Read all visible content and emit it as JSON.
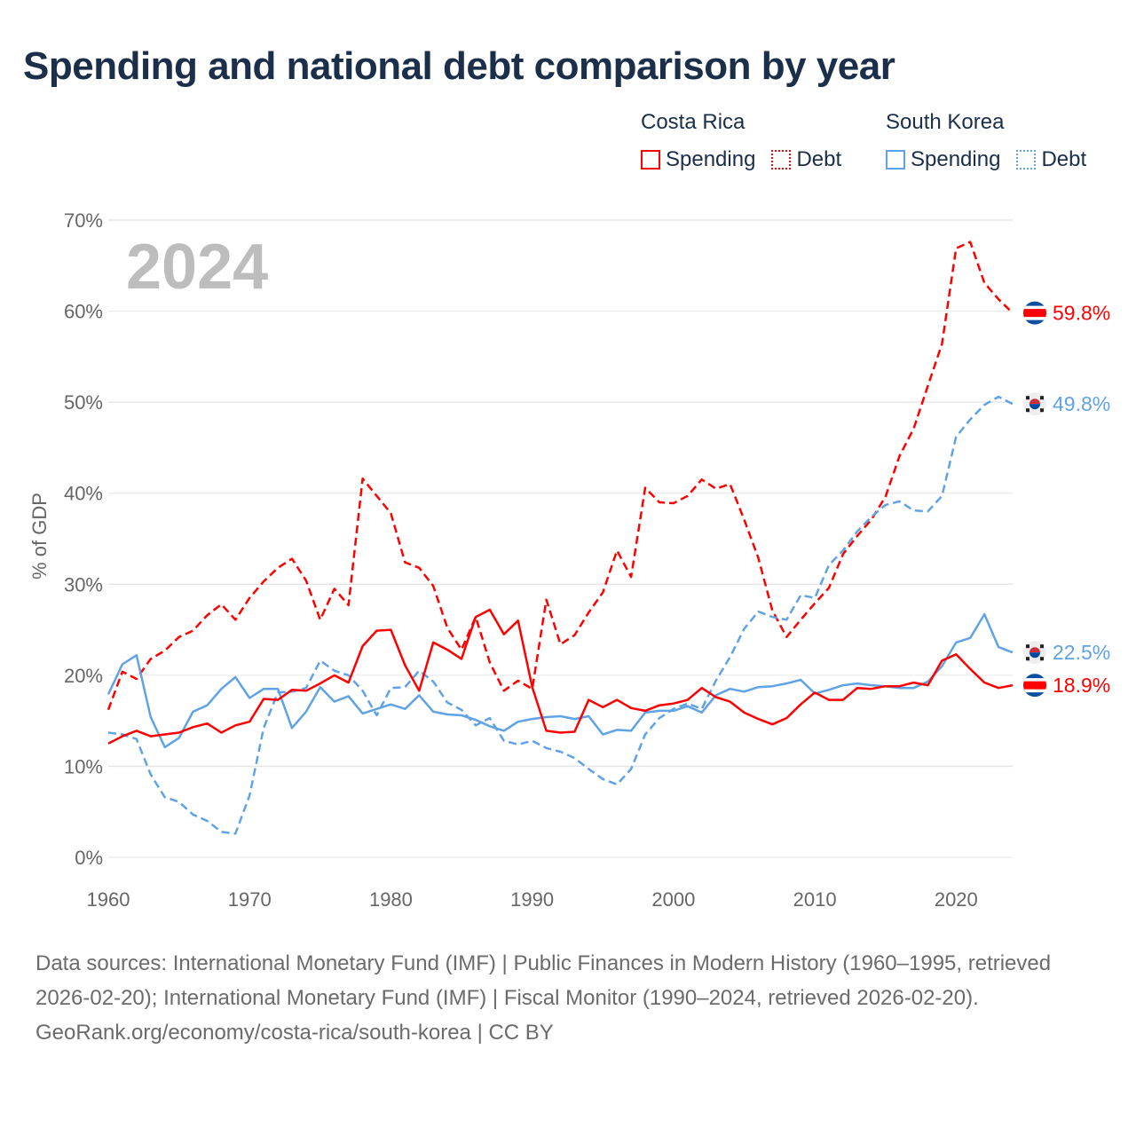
{
  "title": "Spending and national debt comparison by year",
  "legend": {
    "groups": [
      {
        "country": "Costa Rica",
        "items": [
          "Spending",
          "Debt"
        ],
        "color": "#ff0000"
      },
      {
        "country": "South Korea",
        "items": [
          "Spending",
          "Debt"
        ],
        "color": "#5fa3e6"
      }
    ]
  },
  "year_overlay": "2024",
  "footer": {
    "sources": "Data sources: International Monetary Fund (IMF) | Public Finances in Modern History (1960–1995, retrieved 2026-02-20); International Monetary Fund (IMF) | Fiscal Monitor (1990–2024, retrieved 2026-02-20).",
    "credit": "GeoRank.org/economy/costa-rica/south-korea | CC BY"
  },
  "chart_data": {
    "type": "line",
    "title": "Spending and national debt comparison by year",
    "xlabel": "",
    "ylabel": "% of GDP",
    "xlim": [
      1960,
      2024
    ],
    "ylim": [
      0,
      70
    ],
    "x_ticks": [
      "1960",
      "1970",
      "1980",
      "1990",
      "2000",
      "2010",
      "2020"
    ],
    "y_ticks": [
      "0%",
      "10%",
      "20%",
      "30%",
      "40%",
      "50%",
      "60%",
      "70%"
    ],
    "grid": true,
    "legend_position": "top-right",
    "x_start": 1960,
    "series": [
      {
        "name": "Costa Rica Debt",
        "color": "#ff0000",
        "dash": true,
        "end_label": "59.8%",
        "flag": "costa-rica",
        "values": [
          16.2,
          20.4,
          19.6,
          21.8,
          22.7,
          24.2,
          24.9,
          26.6,
          27.8,
          26.1,
          28.5,
          30.3,
          31.8,
          32.8,
          30.4,
          26.1,
          29.5,
          27.7,
          41.6,
          39.7,
          37.8,
          32.4,
          31.8,
          29.8,
          25.2,
          22.8,
          26.4,
          21.4,
          18.3,
          19.4,
          18.5,
          28.3,
          23.4,
          24.4,
          26.9,
          29.1,
          33.7,
          30.8,
          40.6,
          39.0,
          38.9,
          39.7,
          41.5,
          40.5,
          41.0,
          37.1,
          32.9,
          27.1,
          24.2,
          26.1,
          27.9,
          29.6,
          33.3,
          35.3,
          37.1,
          39.6,
          44.1,
          47.1,
          51.8,
          56.4,
          66.9,
          67.6,
          63.1,
          61.3,
          59.8
        ]
      },
      {
        "name": "South Korea Debt",
        "color": "#5fa3e6",
        "dash": true,
        "end_label": "49.8%",
        "flag": "south-korea",
        "values": [
          13.7,
          13.5,
          13.0,
          9.1,
          6.6,
          6.1,
          4.7,
          4.0,
          2.8,
          2.6,
          6.8,
          14.2,
          18.1,
          18.2,
          18.6,
          21.6,
          20.5,
          20.0,
          18.3,
          15.6,
          18.6,
          18.7,
          20.5,
          19.3,
          17.0,
          16.2,
          14.5,
          15.3,
          12.8,
          12.4,
          12.8,
          12.0,
          11.6,
          10.9,
          9.7,
          8.6,
          8.0,
          9.7,
          13.5,
          15.3,
          16.3,
          16.9,
          16.3,
          19.4,
          22.0,
          25.1,
          27.0,
          26.4,
          26.1,
          28.8,
          28.5,
          32.1,
          33.7,
          35.8,
          37.4,
          38.7,
          39.1,
          38.1,
          38.0,
          39.7,
          46.2,
          48.1,
          49.7,
          50.6,
          49.8
        ]
      },
      {
        "name": "South Korea Spending",
        "color": "#5fa3e6",
        "dash": false,
        "end_label": "22.5%",
        "flag": "south-korea",
        "values": [
          17.9,
          21.2,
          22.2,
          15.4,
          12.1,
          13.1,
          16.0,
          16.7,
          18.5,
          19.8,
          17.5,
          18.5,
          18.5,
          14.2,
          16.0,
          18.7,
          17.1,
          17.7,
          15.8,
          16.3,
          16.8,
          16.3,
          17.8,
          16.0,
          15.7,
          15.6,
          15.1,
          14.4,
          13.9,
          14.9,
          15.2,
          15.4,
          15.5,
          15.2,
          15.5,
          13.5,
          14.0,
          13.9,
          15.9,
          16.1,
          16.1,
          16.6,
          15.9,
          17.8,
          18.5,
          18.2,
          18.7,
          18.8,
          19.1,
          19.5,
          18.0,
          18.4,
          18.9,
          19.1,
          18.9,
          18.8,
          18.6,
          18.6,
          19.3,
          21.0,
          23.6,
          24.1,
          26.7,
          23.1,
          22.5
        ]
      },
      {
        "name": "Costa Rica Spending",
        "color": "#ff0000",
        "dash": false,
        "end_label": "18.9%",
        "flag": "costa-rica",
        "values": [
          12.5,
          13.3,
          13.9,
          13.3,
          13.5,
          13.7,
          14.3,
          14.7,
          13.7,
          14.5,
          14.9,
          17.4,
          17.3,
          18.4,
          18.3,
          19.1,
          20.0,
          19.2,
          23.2,
          24.9,
          25.0,
          21.1,
          18.3,
          23.6,
          22.8,
          21.8,
          26.4,
          27.2,
          24.5,
          26.0,
          18.7,
          13.9,
          13.7,
          13.8,
          17.3,
          16.5,
          17.3,
          16.4,
          16.1,
          16.7,
          16.9,
          17.3,
          18.6,
          17.6,
          17.1,
          15.9,
          15.2,
          14.6,
          15.3,
          16.8,
          18.1,
          17.3,
          17.3,
          18.6,
          18.5,
          18.8,
          18.8,
          19.2,
          18.9,
          21.6,
          22.3,
          20.7,
          19.2,
          18.6,
          18.9
        ]
      }
    ]
  }
}
